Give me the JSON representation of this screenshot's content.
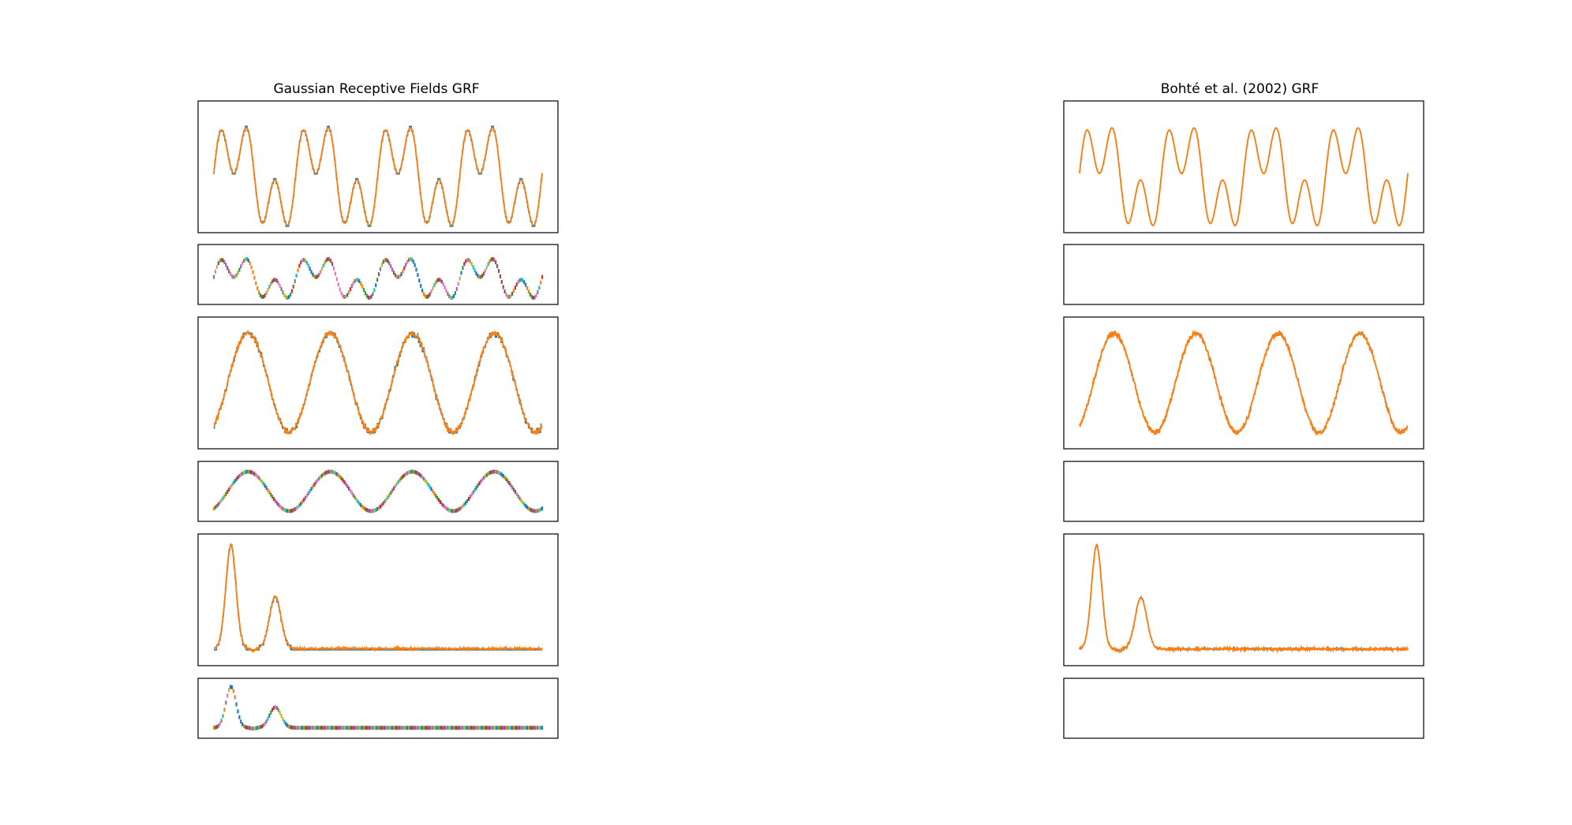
{
  "figure": {
    "colors": {
      "series_a": "#1f77b4",
      "series_b": "#ff7f0e",
      "spike_palette": [
        "#1f77b4",
        "#ff7f0e",
        "#2ca02c",
        "#d62728",
        "#9467bd",
        "#8c564b",
        "#e377c2",
        "#7f7f7f",
        "#bcbd22",
        "#17becf"
      ]
    }
  },
  "chart_data": [
    {
      "panel": "left",
      "row": 1,
      "type": "line",
      "title": "Gaussian Receptive Fields GRF",
      "signal": "composite_sine",
      "quantized": true,
      "x": [
        0,
        1000
      ],
      "ylim": [
        -1.6,
        2.0
      ],
      "series": [
        {
          "color": "#1f77b4"
        },
        {
          "color": "#ff7f0e"
        }
      ]
    },
    {
      "panel": "left",
      "row": 2,
      "type": "scatter",
      "signal": "composite_sine",
      "encoding": "spike_raster",
      "levels": 10,
      "x": [
        0,
        1000
      ]
    },
    {
      "panel": "left",
      "row": 3,
      "type": "line",
      "signal": "noisy_sine",
      "quantized": true,
      "x": [
        0,
        1000
      ],
      "ylim": [
        -1.2,
        1.2
      ],
      "series": [
        {
          "color": "#1f77b4"
        },
        {
          "color": "#ff7f0e"
        }
      ]
    },
    {
      "panel": "left",
      "row": 4,
      "type": "scatter",
      "signal": "noisy_sine",
      "encoding": "spike_raster",
      "levels": 10,
      "x": [
        0,
        1000
      ]
    },
    {
      "panel": "left",
      "row": 5,
      "type": "line",
      "signal": "decaying_bumps",
      "quantized": true,
      "x": [
        0,
        1000
      ],
      "ylim": [
        -0.1,
        1.05
      ],
      "series": [
        {
          "color": "#1f77b4"
        },
        {
          "color": "#ff7f0e"
        }
      ]
    },
    {
      "panel": "left",
      "row": 6,
      "type": "scatter",
      "signal": "decaying_bumps",
      "encoding": "spike_raster",
      "levels": 10,
      "x": [
        0,
        1000
      ]
    },
    {
      "panel": "right",
      "row": 1,
      "type": "line",
      "title": "Bohté et al. (2002) GRF",
      "signal": "composite_sine",
      "quantized": false,
      "x": [
        0,
        1000
      ],
      "ylim": [
        -1.6,
        2.0
      ],
      "series": [
        {
          "color": "#1f77b4"
        },
        {
          "color": "#ff7f0e"
        }
      ]
    },
    {
      "panel": "right",
      "row": 2,
      "type": "scatter",
      "encoding": "empty",
      "x": [
        0,
        1000
      ]
    },
    {
      "panel": "right",
      "row": 3,
      "type": "line",
      "signal": "noisy_sine",
      "quantized": false,
      "x": [
        0,
        1000
      ],
      "ylim": [
        -1.2,
        1.2
      ],
      "series": [
        {
          "color": "#1f77b4"
        },
        {
          "color": "#ff7f0e"
        }
      ]
    },
    {
      "panel": "right",
      "row": 4,
      "type": "scatter",
      "encoding": "empty",
      "x": [
        0,
        1000
      ]
    },
    {
      "panel": "right",
      "row": 5,
      "type": "line",
      "signal": "decaying_bumps",
      "quantized": false,
      "x": [
        0,
        1000
      ],
      "ylim": [
        -0.1,
        1.05
      ],
      "series": [
        {
          "color": "#1f77b4"
        },
        {
          "color": "#ff7f0e"
        }
      ]
    },
    {
      "panel": "right",
      "row": 6,
      "type": "scatter",
      "encoding": "empty",
      "x": [
        0,
        1000
      ]
    }
  ]
}
